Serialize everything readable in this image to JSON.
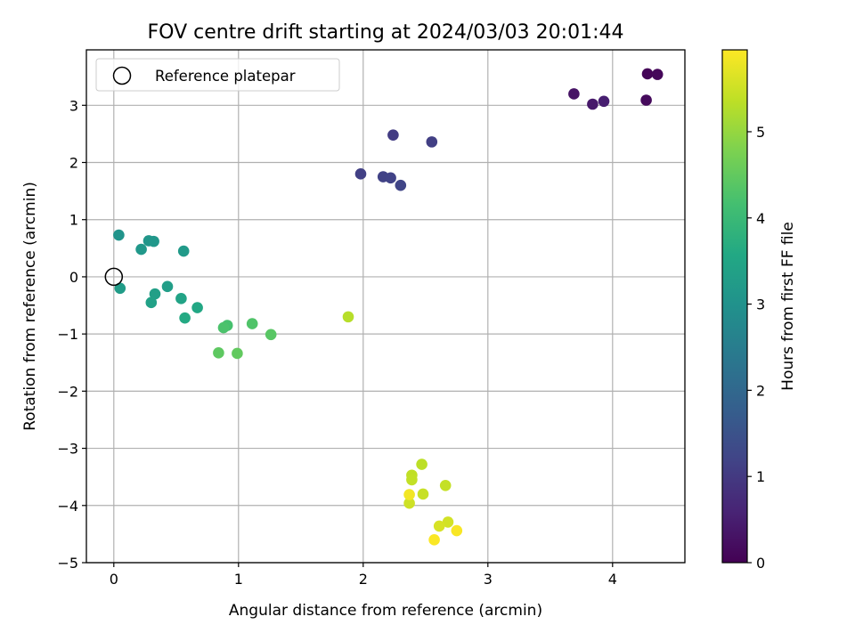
{
  "chart_data": {
    "type": "scatter",
    "title": "FOV centre drift starting at 2024/03/03 20:01:44",
    "xlabel": "Angular distance from reference (arcmin)",
    "ylabel": "Rotation from reference (arcmin)",
    "colorbar_label": "Hours from first FF file",
    "xlim": [
      -0.22,
      4.58
    ],
    "ylim": [
      -5.0,
      3.97
    ],
    "clim": [
      0,
      5.95
    ],
    "x_ticks": [
      "0",
      "1",
      "2",
      "3",
      "4"
    ],
    "y_ticks": [
      "−5",
      "−4",
      "−3",
      "−2",
      "−1",
      "0",
      "1",
      "2",
      "3"
    ],
    "colorbar_ticks": [
      "0",
      "1",
      "2",
      "3",
      "4",
      "5"
    ],
    "grid": true,
    "colormap": "viridis",
    "legend": {
      "location": "upper-left",
      "entries": [
        "Reference platepar"
      ]
    },
    "reference_point": {
      "x": 0,
      "y": 0
    },
    "points": [
      {
        "x": 4.28,
        "y": 3.55,
        "t": 0.05
      },
      {
        "x": 4.36,
        "y": 3.54,
        "t": 0.1
      },
      {
        "x": 4.27,
        "y": 3.09,
        "t": 0.15
      },
      {
        "x": 3.69,
        "y": 3.2,
        "t": 0.3
      },
      {
        "x": 3.84,
        "y": 3.02,
        "t": 0.4
      },
      {
        "x": 3.93,
        "y": 3.07,
        "t": 0.5
      },
      {
        "x": 2.24,
        "y": 2.48,
        "t": 1.05
      },
      {
        "x": 2.55,
        "y": 2.36,
        "t": 1.1
      },
      {
        "x": 1.98,
        "y": 1.8,
        "t": 1.12
      },
      {
        "x": 2.16,
        "y": 1.75,
        "t": 1.15
      },
      {
        "x": 2.22,
        "y": 1.73,
        "t": 1.18
      },
      {
        "x": 2.3,
        "y": 1.6,
        "t": 1.22
      },
      {
        "x": 0.04,
        "y": 0.73,
        "t": 3.05
      },
      {
        "x": 0.28,
        "y": 0.63,
        "t": 3.1
      },
      {
        "x": 0.32,
        "y": 0.62,
        "t": 3.12
      },
      {
        "x": 0.22,
        "y": 0.48,
        "t": 3.15
      },
      {
        "x": 0.56,
        "y": 0.45,
        "t": 3.2
      },
      {
        "x": 0.05,
        "y": -0.2,
        "t": 3.25
      },
      {
        "x": 0.43,
        "y": -0.17,
        "t": 3.3
      },
      {
        "x": 0.33,
        "y": -0.3,
        "t": 3.35
      },
      {
        "x": 0.3,
        "y": -0.45,
        "t": 3.38
      },
      {
        "x": 0.54,
        "y": -0.38,
        "t": 3.45
      },
      {
        "x": 0.67,
        "y": -0.54,
        "t": 3.55
      },
      {
        "x": 0.57,
        "y": -0.72,
        "t": 3.6
      },
      {
        "x": 0.91,
        "y": -0.85,
        "t": 4.2
      },
      {
        "x": 0.88,
        "y": -0.89,
        "t": 4.25
      },
      {
        "x": 1.11,
        "y": -0.82,
        "t": 4.3
      },
      {
        "x": 1.26,
        "y": -1.01,
        "t": 4.4
      },
      {
        "x": 0.84,
        "y": -1.33,
        "t": 4.45
      },
      {
        "x": 0.99,
        "y": -1.34,
        "t": 4.5
      },
      {
        "x": 1.88,
        "y": -0.7,
        "t": 5.3
      },
      {
        "x": 2.47,
        "y": -3.28,
        "t": 5.35
      },
      {
        "x": 2.39,
        "y": -3.47,
        "t": 5.38
      },
      {
        "x": 2.39,
        "y": -3.55,
        "t": 5.4
      },
      {
        "x": 2.66,
        "y": -3.65,
        "t": 5.42
      },
      {
        "x": 2.48,
        "y": -3.8,
        "t": 5.45
      },
      {
        "x": 2.37,
        "y": -3.96,
        "t": 5.5
      },
      {
        "x": 2.68,
        "y": -4.29,
        "t": 5.55
      },
      {
        "x": 2.61,
        "y": -4.36,
        "t": 5.6
      },
      {
        "x": 2.37,
        "y": -3.81,
        "t": 5.85
      },
      {
        "x": 2.75,
        "y": -4.44,
        "t": 5.9
      },
      {
        "x": 2.57,
        "y": -4.6,
        "t": 5.92
      }
    ]
  }
}
